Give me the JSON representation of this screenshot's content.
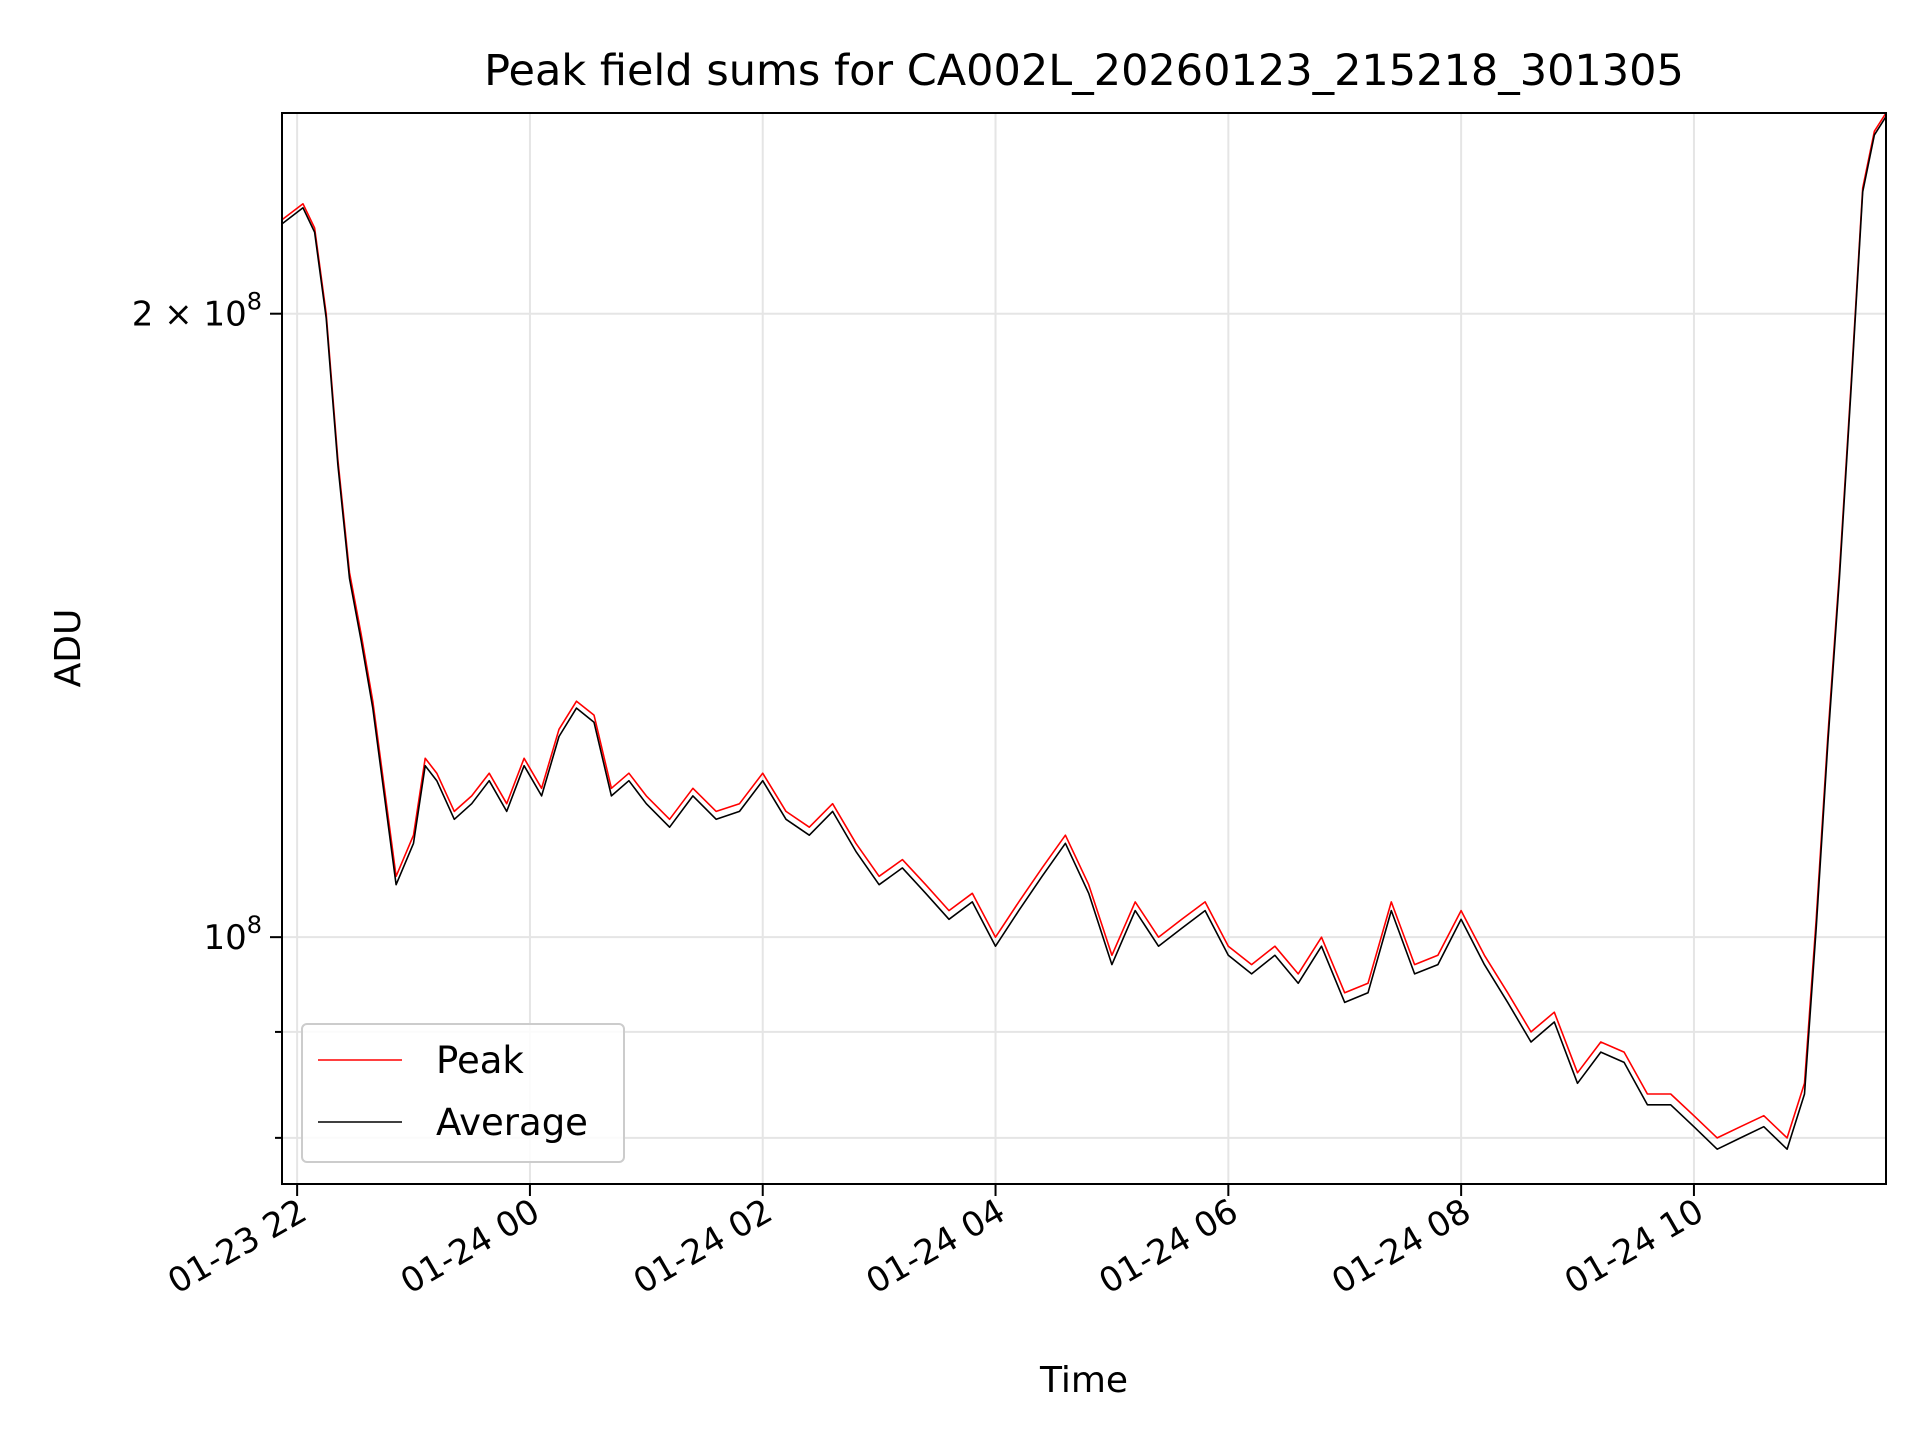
{
  "chart_data": {
    "type": "line",
    "title": "Peak field sums for CA002L_20260123_215218_301305",
    "xlabel": "Time",
    "ylabel": "ADU",
    "x_ticks": [
      "01-23 22",
      "01-24 00",
      "01-24 02",
      "01-24 04",
      "01-24 06",
      "01-24 08",
      "01-24 10"
    ],
    "x_tick_hours": [
      22,
      24,
      26,
      28,
      30,
      32,
      34
    ],
    "xlim_hours": [
      21.87,
      35.65
    ],
    "y_scale": "log",
    "ylim": [
      76000000,
      250000000
    ],
    "y_major_ticks": [
      {
        "value": 100000000,
        "mantissa": "",
        "base": "10",
        "exponent": "8"
      },
      {
        "value": 200000000,
        "mantissa": "2 × ",
        "base": "10",
        "exponent": "8"
      }
    ],
    "y_minor_ticks": [
      80000000,
      90000000
    ],
    "grid": true,
    "legend_position": "lower-left",
    "colors": {
      "Peak": "#ff0000",
      "Average": "#000000"
    },
    "series": [
      {
        "name": "Peak",
        "x_hours": [
          21.87,
          22.05,
          22.15,
          22.25,
          22.35,
          22.45,
          22.55,
          22.65,
          22.75,
          22.85,
          23.0,
          23.1,
          23.2,
          23.35,
          23.5,
          23.65,
          23.8,
          23.95,
          24.1,
          24.25,
          24.4,
          24.55,
          24.7,
          24.85,
          25.0,
          25.2,
          25.4,
          25.6,
          25.8,
          26.0,
          26.2,
          26.4,
          26.6,
          26.8,
          27.0,
          27.2,
          27.4,
          27.6,
          27.8,
          28.0,
          28.2,
          28.4,
          28.6,
          28.8,
          29.0,
          29.2,
          29.4,
          29.6,
          29.8,
          30.0,
          30.2,
          30.4,
          30.6,
          30.8,
          31.0,
          31.2,
          31.4,
          31.6,
          31.8,
          32.0,
          32.2,
          32.4,
          32.6,
          32.8,
          33.0,
          33.2,
          33.4,
          33.6,
          33.8,
          34.0,
          34.2,
          34.4,
          34.6,
          34.8,
          34.95,
          35.05,
          35.15,
          35.25,
          35.35,
          35.45,
          35.55,
          35.65
        ],
        "values": [
          222000000,
          226000000,
          220000000,
          200000000,
          170000000,
          150000000,
          140000000,
          130000000,
          118000000,
          107000000,
          112000000,
          122000000,
          120000000,
          115000000,
          117000000,
          120000000,
          116000000,
          122000000,
          118000000,
          126000000,
          130000000,
          128000000,
          118000000,
          120000000,
          117000000,
          114000000,
          118000000,
          115000000,
          116000000,
          120000000,
          115000000,
          113000000,
          116000000,
          111000000,
          107000000,
          109000000,
          106000000,
          103000000,
          105000000,
          100000000,
          104000000,
          108000000,
          112000000,
          106000000,
          98000000,
          104000000,
          100000000,
          102000000,
          104000000,
          99000000,
          97000000,
          99000000,
          96000000,
          100000000,
          94000000,
          95000000,
          104000000,
          97000000,
          98000000,
          103000000,
          98000000,
          94000000,
          90000000,
          92000000,
          86000000,
          89000000,
          88000000,
          84000000,
          84000000,
          82000000,
          80000000,
          81000000,
          82000000,
          80000000,
          85000000,
          102000000,
          125000000,
          150000000,
          185000000,
          230000000,
          245000000,
          250000000
        ]
      },
      {
        "name": "Average",
        "x_hours": [
          21.87,
          22.05,
          22.15,
          22.25,
          22.35,
          22.45,
          22.55,
          22.65,
          22.75,
          22.85,
          23.0,
          23.1,
          23.2,
          23.35,
          23.5,
          23.65,
          23.8,
          23.95,
          24.1,
          24.25,
          24.4,
          24.55,
          24.7,
          24.85,
          25.0,
          25.2,
          25.4,
          25.6,
          25.8,
          26.0,
          26.2,
          26.4,
          26.6,
          26.8,
          27.0,
          27.2,
          27.4,
          27.6,
          27.8,
          28.0,
          28.2,
          28.4,
          28.6,
          28.8,
          29.0,
          29.2,
          29.4,
          29.6,
          29.8,
          30.0,
          30.2,
          30.4,
          30.6,
          30.8,
          31.0,
          31.2,
          31.4,
          31.6,
          31.8,
          32.0,
          32.2,
          32.4,
          32.6,
          32.8,
          33.0,
          33.2,
          33.4,
          33.6,
          33.8,
          34.0,
          34.2,
          34.4,
          34.6,
          34.8,
          34.95,
          35.05,
          35.15,
          35.25,
          35.35,
          35.45,
          35.55,
          35.65
        ],
        "values": [
          221000000,
          225000000,
          219000000,
          199000000,
          169000000,
          149000000,
          139000000,
          129000000,
          117000000,
          106000000,
          111000000,
          121000000,
          119000000,
          114000000,
          116000000,
          119000000,
          115000000,
          121000000,
          117000000,
          125000000,
          129000000,
          127000000,
          117000000,
          119000000,
          116000000,
          113000000,
          117000000,
          114000000,
          115000000,
          119000000,
          114000000,
          112000000,
          115000000,
          110000000,
          106000000,
          108000000,
          105000000,
          102000000,
          104000000,
          99000000,
          103000000,
          107000000,
          111000000,
          105000000,
          97000000,
          103000000,
          99000000,
          101000000,
          103000000,
          98000000,
          96000000,
          98000000,
          95000000,
          99000000,
          93000000,
          94000000,
          103000000,
          96000000,
          97000000,
          102000000,
          97000000,
          93000000,
          89000000,
          91000000,
          85000000,
          88000000,
          87000000,
          83000000,
          83000000,
          81000000,
          79000000,
          80000000,
          81000000,
          79000000,
          84000000,
          101000000,
          124000000,
          149000000,
          184000000,
          229000000,
          244000000,
          249000000
        ]
      }
    ]
  }
}
